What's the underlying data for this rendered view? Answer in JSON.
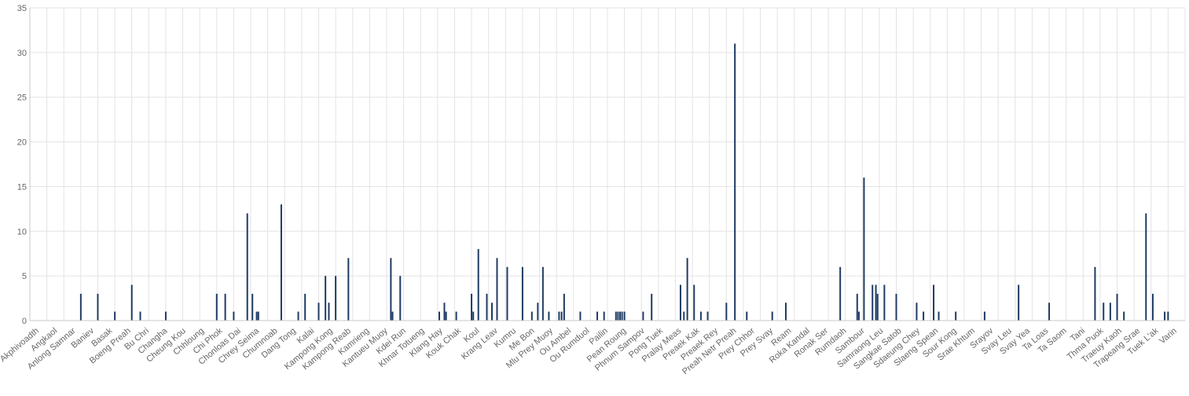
{
  "chart_data": {
    "type": "bar",
    "ylim": [
      0,
      35
    ],
    "yticks": [
      0,
      5,
      10,
      15,
      20,
      25,
      30,
      35
    ],
    "grid": true,
    "legend": "none",
    "colors": {
      "bar": "#1f3b63",
      "grid": "#e3e3e3",
      "axis": "#c8c8c8",
      "text": "#666666"
    },
    "x_tick_labels": [
      "Akphivoadth",
      "Angkaol",
      "Anlong Samnar",
      "Baniev",
      "Basak",
      "Boeng Preah",
      "Bu Chri",
      "Changha",
      "Cheung Kou",
      "Chhloung",
      "Chi Phok",
      "Chonloas Dai",
      "Chrey Seima",
      "Chumnoab",
      "Dang Tong",
      "Kalai",
      "Kampong Kong",
      "Kampong Reab",
      "Kamrieng",
      "Kantueu Muoy",
      "Kdei Run",
      "Khnar Totueng",
      "Klang Hay",
      "Kouk Chak",
      "Koul",
      "Krang Leav",
      "Kumru",
      "Me Bon",
      "Mlu Prey Muoy",
      "Ou Ambel",
      "Ou Rumduol",
      "Pailin",
      "Pean Roung",
      "Phnum Sampov",
      "Pong Tuek",
      "Pralay Meas",
      "Preaek Kak",
      "Preaek Rey",
      "Preah Netr Preah",
      "Prey Chhor",
      "Prey Svay",
      "Ream",
      "Roka Kandal",
      "Ronak Ser",
      "Rumdaoh",
      "Sambour",
      "Samraong Leu",
      "Sangkae Satob",
      "Sdaeung Chey",
      "Slaeng Spean",
      "Sour Kong",
      "Srae Khtum",
      "Srayov",
      "Svay Leu",
      "Svay Yea",
      "Ta Loas",
      "Ta Saom",
      "Tani",
      "Thma Puok",
      "Traeuy Kaoh",
      "Trapeang Srae",
      "Tuek L'ak",
      "Varin"
    ],
    "bars": [
      {
        "x": 3.0,
        "y": 3
      },
      {
        "x": 4.0,
        "y": 3
      },
      {
        "x": 5.0,
        "y": 1
      },
      {
        "x": 6.0,
        "y": 4
      },
      {
        "x": 6.5,
        "y": 1
      },
      {
        "x": 8.0,
        "y": 1
      },
      {
        "x": 11.0,
        "y": 3
      },
      {
        "x": 11.5,
        "y": 3
      },
      {
        "x": 12.0,
        "y": 1
      },
      {
        "x": 12.8,
        "y": 12
      },
      {
        "x": 13.1,
        "y": 3
      },
      {
        "x": 13.35,
        "y": 1
      },
      {
        "x": 13.45,
        "y": 1
      },
      {
        "x": 14.8,
        "y": 13
      },
      {
        "x": 15.8,
        "y": 1
      },
      {
        "x": 16.2,
        "y": 3
      },
      {
        "x": 17.0,
        "y": 2
      },
      {
        "x": 17.4,
        "y": 5
      },
      {
        "x": 17.6,
        "y": 2
      },
      {
        "x": 18.0,
        "y": 5
      },
      {
        "x": 18.75,
        "y": 7
      },
      {
        "x": 21.25,
        "y": 7
      },
      {
        "x": 21.35,
        "y": 1
      },
      {
        "x": 21.8,
        "y": 5
      },
      {
        "x": 24.1,
        "y": 1
      },
      {
        "x": 24.4,
        "y": 2
      },
      {
        "x": 24.5,
        "y": 1
      },
      {
        "x": 25.1,
        "y": 1
      },
      {
        "x": 26.0,
        "y": 3
      },
      {
        "x": 26.1,
        "y": 1
      },
      {
        "x": 26.4,
        "y": 8
      },
      {
        "x": 26.9,
        "y": 3
      },
      {
        "x": 27.2,
        "y": 2
      },
      {
        "x": 27.5,
        "y": 7
      },
      {
        "x": 28.1,
        "y": 6
      },
      {
        "x": 29.0,
        "y": 6
      },
      {
        "x": 29.55,
        "y": 1
      },
      {
        "x": 29.9,
        "y": 2
      },
      {
        "x": 30.2,
        "y": 6
      },
      {
        "x": 30.55,
        "y": 1
      },
      {
        "x": 31.15,
        "y": 1
      },
      {
        "x": 31.3,
        "y": 1
      },
      {
        "x": 31.45,
        "y": 3
      },
      {
        "x": 32.4,
        "y": 1
      },
      {
        "x": 33.4,
        "y": 1
      },
      {
        "x": 33.8,
        "y": 1
      },
      {
        "x": 34.5,
        "y": 1
      },
      {
        "x": 34.62,
        "y": 1
      },
      {
        "x": 34.74,
        "y": 1
      },
      {
        "x": 34.86,
        "y": 1
      },
      {
        "x": 35.0,
        "y": 1
      },
      {
        "x": 36.1,
        "y": 1
      },
      {
        "x": 36.6,
        "y": 3
      },
      {
        "x": 38.3,
        "y": 4
      },
      {
        "x": 38.5,
        "y": 1
      },
      {
        "x": 38.7,
        "y": 7
      },
      {
        "x": 39.1,
        "y": 4
      },
      {
        "x": 39.5,
        "y": 1
      },
      {
        "x": 39.9,
        "y": 1
      },
      {
        "x": 41.0,
        "y": 2
      },
      {
        "x": 41.5,
        "y": 31
      },
      {
        "x": 42.2,
        "y": 1
      },
      {
        "x": 43.7,
        "y": 1
      },
      {
        "x": 44.5,
        "y": 2
      },
      {
        "x": 47.7,
        "y": 6
      },
      {
        "x": 48.7,
        "y": 3
      },
      {
        "x": 48.8,
        "y": 1
      },
      {
        "x": 49.1,
        "y": 16
      },
      {
        "x": 49.6,
        "y": 4
      },
      {
        "x": 49.8,
        "y": 4
      },
      {
        "x": 49.9,
        "y": 3
      },
      {
        "x": 50.3,
        "y": 4
      },
      {
        "x": 51.0,
        "y": 3
      },
      {
        "x": 52.2,
        "y": 2
      },
      {
        "x": 52.6,
        "y": 1
      },
      {
        "x": 53.2,
        "y": 4
      },
      {
        "x": 53.5,
        "y": 1
      },
      {
        "x": 54.5,
        "y": 1
      },
      {
        "x": 56.2,
        "y": 1
      },
      {
        "x": 58.2,
        "y": 4
      },
      {
        "x": 60.0,
        "y": 2
      },
      {
        "x": 62.7,
        "y": 6
      },
      {
        "x": 63.2,
        "y": 2
      },
      {
        "x": 63.6,
        "y": 2
      },
      {
        "x": 64.0,
        "y": 3
      },
      {
        "x": 64.4,
        "y": 1
      },
      {
        "x": 65.7,
        "y": 12
      },
      {
        "x": 66.1,
        "y": 3
      },
      {
        "x": 66.8,
        "y": 1
      },
      {
        "x": 67.0,
        "y": 1
      }
    ]
  }
}
